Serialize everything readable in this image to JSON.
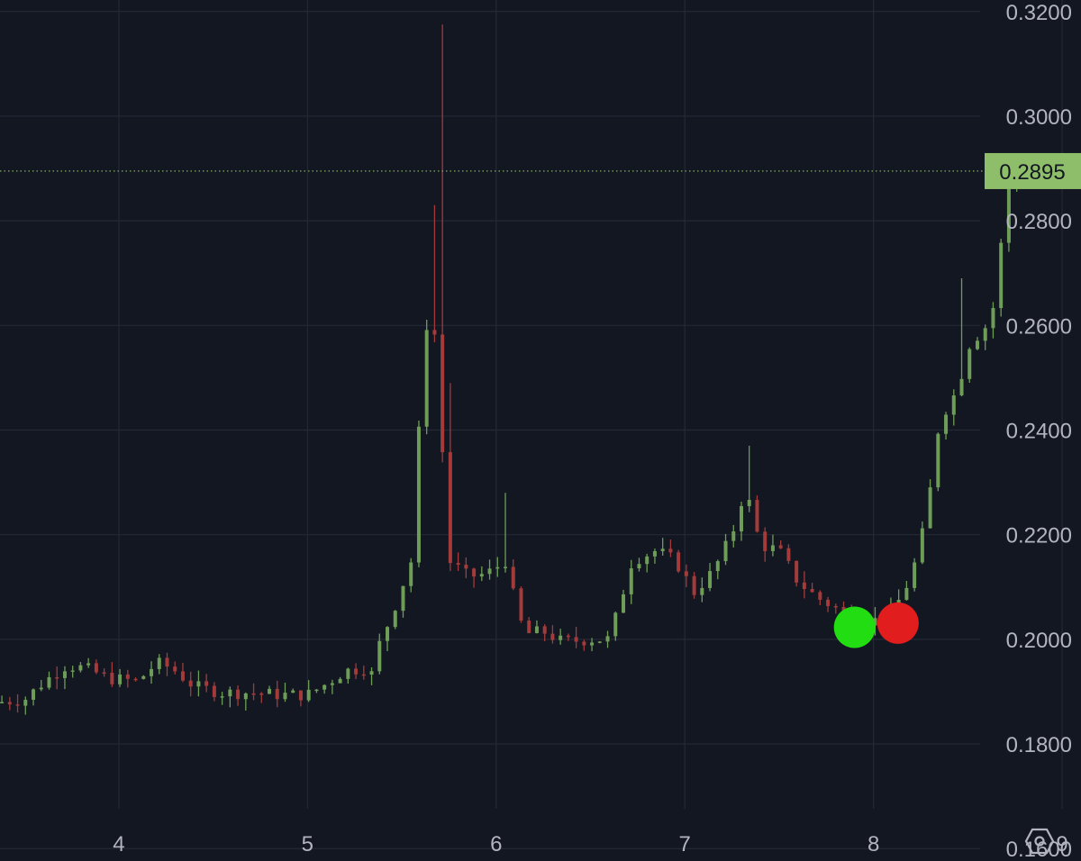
{
  "chart_data": {
    "type": "candlestick",
    "x_ticks": [
      "4",
      "5",
      "6",
      "7",
      "8",
      "9"
    ],
    "y_ticks": [
      "0.3200",
      "0.3000",
      "0.2800",
      "0.2600",
      "0.2400",
      "0.2200",
      "0.2000",
      "0.1800",
      "0.1600"
    ],
    "ylim": [
      0.1578,
      0.3222
    ],
    "xlim": [
      3.37,
      9.1
    ],
    "last_price": "0.2895",
    "grid": true,
    "colors": {
      "background": "#131722",
      "grid": "#242935",
      "up": "#6e9d57",
      "down": "#a33b3b",
      "axis_text": "#b2b5be",
      "price_badge": "#8fbe6a",
      "marker_green": "#22dd11",
      "marker_red": "#e11d1d"
    },
    "markers": [
      {
        "color": "green",
        "x": 7.9,
        "y": 0.2023
      },
      {
        "color": "red",
        "x": 8.13,
        "y": 0.2031
      }
    ],
    "anchors": [
      [
        3.37,
        0.188
      ],
      [
        3.5,
        0.1885
      ],
      [
        3.6,
        0.1918
      ],
      [
        3.72,
        0.195
      ],
      [
        3.82,
        0.1945
      ],
      [
        3.95,
        0.1925
      ],
      [
        4.1,
        0.192
      ],
      [
        4.2,
        0.1955
      ],
      [
        4.28,
        0.1945
      ],
      [
        4.4,
        0.191
      ],
      [
        4.55,
        0.1898
      ],
      [
        4.7,
        0.1898
      ],
      [
        4.85,
        0.1894
      ],
      [
        5.0,
        0.1894
      ],
      [
        5.1,
        0.1915
      ],
      [
        5.2,
        0.194
      ],
      [
        5.3,
        0.1945
      ],
      [
        5.35,
        0.193
      ],
      [
        5.38,
        0.199
      ],
      [
        5.45,
        0.205
      ],
      [
        5.55,
        0.215
      ],
      [
        5.62,
        0.258
      ],
      [
        5.66,
        0.265
      ],
      [
        5.7,
        0.245
      ],
      [
        5.75,
        0.215
      ],
      [
        5.85,
        0.212
      ],
      [
        5.95,
        0.2125
      ],
      [
        6.05,
        0.215
      ],
      [
        6.1,
        0.207
      ],
      [
        6.15,
        0.201
      ],
      [
        6.25,
        0.2015
      ],
      [
        6.35,
        0.1995
      ],
      [
        6.5,
        0.2
      ],
      [
        6.6,
        0.2
      ],
      [
        6.72,
        0.215
      ],
      [
        6.85,
        0.217
      ],
      [
        6.95,
        0.215
      ],
      [
        7.05,
        0.209
      ],
      [
        7.15,
        0.213
      ],
      [
        7.25,
        0.22
      ],
      [
        7.32,
        0.229
      ],
      [
        7.4,
        0.218
      ],
      [
        7.5,
        0.217
      ],
      [
        7.6,
        0.211
      ],
      [
        7.7,
        0.208
      ],
      [
        7.8,
        0.206
      ],
      [
        7.9,
        0.204
      ],
      [
        8.0,
        0.2035
      ],
      [
        8.1,
        0.205
      ],
      [
        8.2,
        0.212
      ],
      [
        8.28,
        0.223
      ],
      [
        8.35,
        0.242
      ],
      [
        8.45,
        0.248
      ],
      [
        8.5,
        0.256
      ],
      [
        8.6,
        0.26
      ],
      [
        8.65,
        0.265
      ],
      [
        8.7,
        0.285
      ],
      [
        8.75,
        0.2895
      ]
    ],
    "spikes": [
      [
        5.7,
        0.3175
      ],
      [
        5.68,
        0.283
      ],
      [
        5.75,
        0.249
      ],
      [
        6.04,
        0.228
      ],
      [
        7.33,
        0.237
      ],
      [
        8.45,
        0.269
      ],
      [
        8.72,
        0.291
      ]
    ]
  }
}
